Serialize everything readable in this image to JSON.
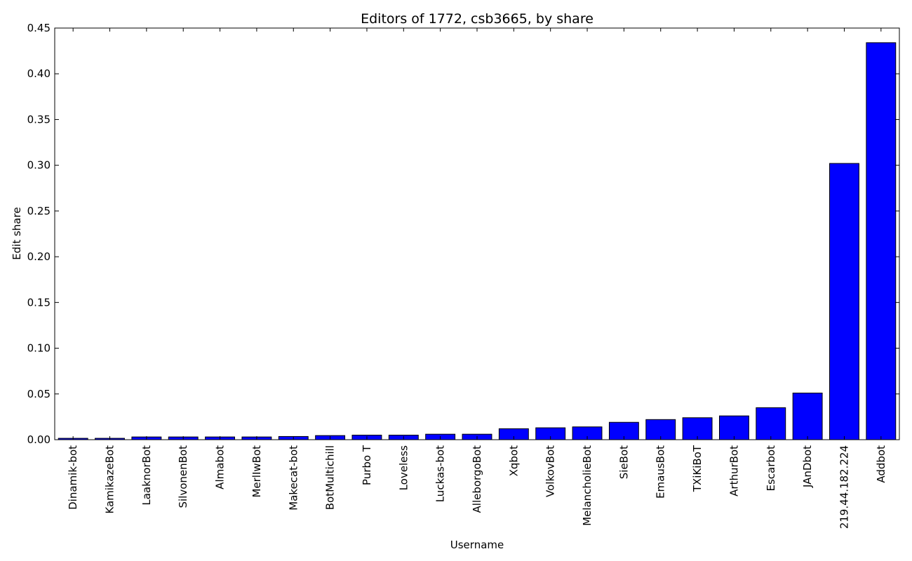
{
  "chart_data": {
    "type": "bar",
    "title": "Editors of 1772, csb3665, by share",
    "xlabel": "Username",
    "ylabel": "Edit share",
    "categories": [
      "Dinamik-bot",
      "KamikazeBot",
      "LaaknorBot",
      "SilvonenBot",
      "Almabot",
      "MerlIwBot",
      "Makecat-bot",
      "BotMultichill",
      "Purbo T",
      "Loveless",
      "Luckas-bot",
      "AlleborgoBot",
      "Xqbot",
      "VolkovBot",
      "MelancholieBot",
      "SieBot",
      "EmausBot",
      "TXiKiBoT",
      "ArthurBot",
      "Escarbot",
      "JAnDbot",
      "219.44.182.224",
      "Addbot"
    ],
    "values": [
      0.0015,
      0.0015,
      0.003,
      0.003,
      0.003,
      0.003,
      0.0035,
      0.0045,
      0.005,
      0.005,
      0.006,
      0.006,
      0.012,
      0.013,
      0.014,
      0.019,
      0.022,
      0.024,
      0.026,
      0.035,
      0.051,
      0.302,
      0.434
    ],
    "ylim": [
      0,
      0.45
    ],
    "yticks": [
      "0.00",
      "0.05",
      "0.10",
      "0.15",
      "0.20",
      "0.25",
      "0.30",
      "0.35",
      "0.40",
      "0.45"
    ],
    "bar_color": "#0000ff",
    "grid": false,
    "legend": "none"
  }
}
